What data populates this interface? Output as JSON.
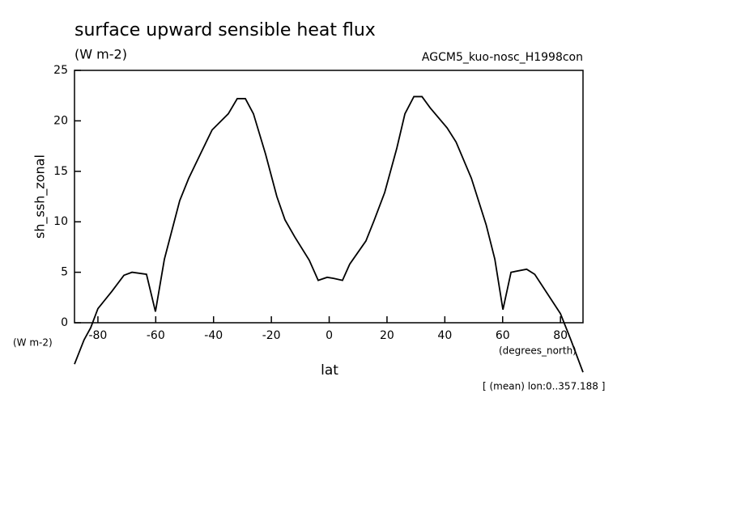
{
  "chart_data": {
    "type": "line",
    "title": "surface upward sensible heat flux",
    "units": "(W m-2)",
    "subtitle": "AGCM5_kuo-nosc_H1998con",
    "y_label": "sh_ssh_zonal",
    "y_units": "(W m-2)",
    "x_units": "(degrees_north)",
    "x_label": "lat",
    "annotation": "[ (mean) lon:0..357.188 ]",
    "color": "#000000",
    "x": [
      -88.1,
      -84.8,
      -82.5,
      -80,
      -75.2,
      -71,
      -68.2,
      -63.2,
      -60.1,
      -57,
      -51.7,
      -48.6,
      -43.9,
      -40.5,
      -34.9,
      -31.8,
      -29,
      -26.2,
      -22,
      -18.1,
      -15.3,
      -11.9,
      -6.9,
      -3.8,
      -0.7,
      1.5,
      4.6,
      7.1,
      12.7,
      15.5,
      19.2,
      23.4,
      26.2,
      29.3,
      32.1,
      34.9,
      40.8,
      43.9,
      49.2,
      54.3,
      57.3,
      60.1,
      62.9,
      68.3,
      71.1,
      80,
      83.6,
      87.8
    ],
    "values": [
      -4.1,
      -1.7,
      -0.5,
      1.4,
      3.1,
      4.7,
      5.0,
      4.8,
      1.1,
      6.3,
      12.1,
      14.3,
      17.1,
      19.1,
      20.7,
      22.2,
      22.2,
      20.7,
      16.7,
      12.5,
      10.2,
      8.5,
      6.2,
      4.2,
      4.5,
      4.4,
      4.2,
      5.8,
      8.1,
      10.1,
      12.9,
      17.3,
      20.7,
      22.4,
      22.4,
      21.3,
      19.3,
      17.9,
      14.3,
      9.7,
      6.3,
      1.3,
      5.0,
      5.3,
      4.8,
      0.9,
      -1.7,
      -4.9
    ],
    "xlim": [
      -88.1,
      87.8
    ],
    "ylim": [
      0,
      25
    ],
    "xticks": [
      -80,
      -60,
      -40,
      -20,
      0,
      20,
      40,
      60,
      80
    ],
    "yticks": [
      0,
      5,
      10,
      15,
      20,
      25
    ]
  }
}
